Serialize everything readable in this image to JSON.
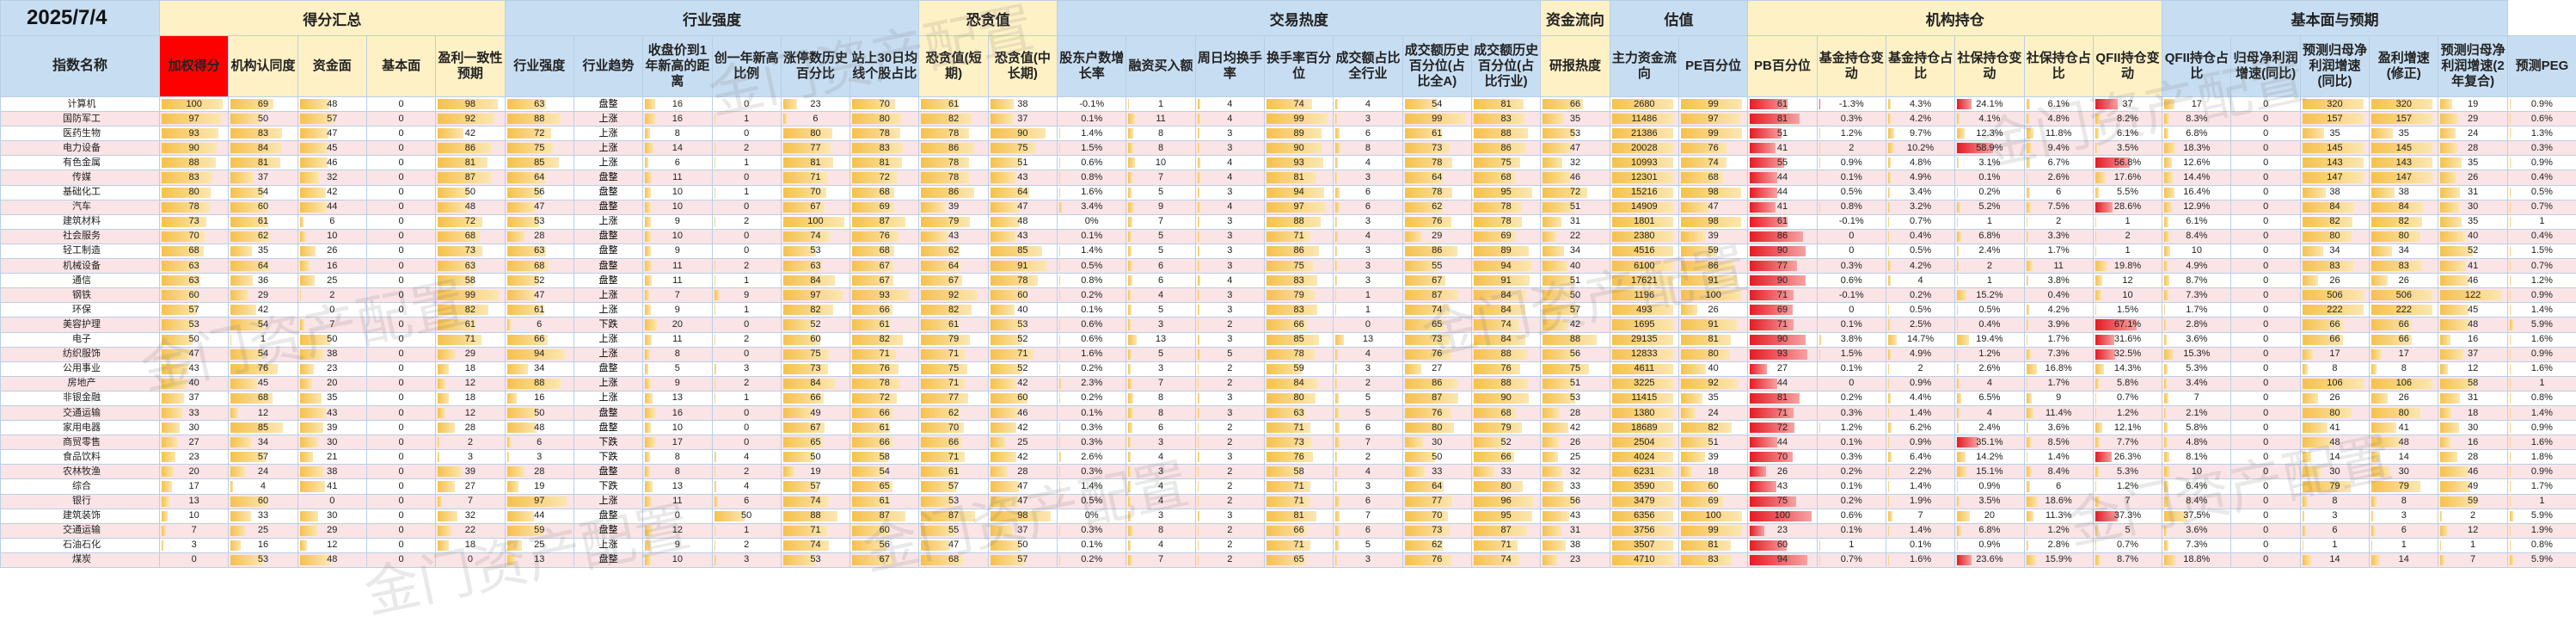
{
  "date": "2025/7/4",
  "name_header": "指数名称",
  "groups": [
    {
      "label": "得分汇总",
      "span": 5,
      "color": "yellow"
    },
    {
      "label": "行业强度",
      "span": 6,
      "color": "blue"
    },
    {
      "label": "恐贪值",
      "span": 2,
      "color": "yellow"
    },
    {
      "label": "交易热度",
      "span": 7,
      "color": "blue"
    },
    {
      "label": "资金流向",
      "span": 1,
      "color": "yellow"
    },
    {
      "label": "估值",
      "span": 2,
      "color": "blue"
    },
    {
      "label": "机构持仓",
      "span": 6,
      "color": "yellow"
    },
    {
      "label": "基本面与预期",
      "span": 5,
      "color": "blue"
    }
  ],
  "columns": [
    "加权得分",
    "机构认同度",
    "资金面",
    "基本面",
    "盈利一致性预期",
    "行业强度",
    "行业趋势",
    "收盘价到1年新高的距离",
    "创一年新高比例",
    "涨停数历史百分比",
    "站上30日均线个股占比",
    "恐贪值(短期)",
    "恐贪值(中长期)",
    "股东户数增长率",
    "融资买入额",
    "周日均换手率",
    "换手率百分位",
    "成交额占比全行业",
    "成交额历史百分位(占比全A)",
    "成交额历史百分位(占比行业)",
    "研报热度",
    "主力资金流向",
    "PE百分位",
    "PB百分位",
    "基金持仓变动",
    "基金持仓占比",
    "社保持仓变动",
    "社保持仓占比",
    "QFII持仓变动",
    "QFII持仓占比",
    "归母净利润增速(同比)",
    "预测归母净利润增速(同比)",
    "盈利增速(修正)",
    "预测归母净利润增速(2年复合)",
    "预测PEG"
  ],
  "watermark_text": "金门资产配置",
  "rows": [
    {
      "name": "计算机",
      "score": 100,
      "inst": 69,
      "fund": 48,
      "basic": 0,
      "cons": 98,
      "str": 63,
      "trend": "盘整"
    },
    {
      "name": "国防军工",
      "score": 97,
      "inst": 50,
      "fund": 57,
      "basic": 0,
      "cons": 92,
      "str": 88,
      "trend": "上涨"
    },
    {
      "name": "医药生物",
      "score": 93,
      "inst": 83,
      "fund": 47,
      "basic": 0,
      "cons": 42,
      "str": 72,
      "trend": "上涨"
    },
    {
      "name": "电力设备",
      "score": 90,
      "inst": 84,
      "fund": 45,
      "basic": 0,
      "cons": 86,
      "str": 75,
      "trend": "上涨"
    },
    {
      "name": "有色金属",
      "score": 88,
      "inst": 81,
      "fund": 46,
      "basic": 0,
      "cons": 81,
      "str": 85,
      "trend": "上涨"
    },
    {
      "name": "传媒",
      "score": 83,
      "inst": 37,
      "fund": 32,
      "basic": 0,
      "cons": 87,
      "str": 64,
      "trend": "盘整"
    },
    {
      "name": "基础化工",
      "score": 80,
      "inst": 54,
      "fund": 42,
      "basic": 0,
      "cons": 50,
      "str": 56,
      "trend": "盘整"
    },
    {
      "name": "汽车",
      "score": 78,
      "inst": 60,
      "fund": 44,
      "basic": 0,
      "cons": 48,
      "str": 47,
      "trend": "盘整"
    },
    {
      "name": "建筑材料",
      "score": 73,
      "inst": 61,
      "fund": 6,
      "basic": 0,
      "cons": 72,
      "str": 53,
      "trend": "上涨"
    },
    {
      "name": "社会服务",
      "score": 70,
      "inst": 62,
      "fund": 10,
      "basic": 0,
      "cons": 68,
      "str": 28,
      "trend": "盘整"
    },
    {
      "name": "轻工制造",
      "score": 68,
      "inst": 35,
      "fund": 26,
      "basic": 0,
      "cons": 73,
      "str": 63,
      "trend": "盘整"
    },
    {
      "name": "机械设备",
      "score": 63,
      "inst": 64,
      "fund": 16,
      "basic": 0,
      "cons": 63,
      "str": 68,
      "trend": "盘整"
    },
    {
      "name": "通信",
      "score": 63,
      "inst": 36,
      "fund": 25,
      "basic": 0,
      "cons": 58,
      "str": 52,
      "trend": "盘整"
    },
    {
      "name": "钢铁",
      "score": 60,
      "inst": 29,
      "fund": 2,
      "basic": 0,
      "cons": 99,
      "str": 47,
      "trend": "上涨"
    },
    {
      "name": "环保",
      "score": 57,
      "inst": 42,
      "fund": 0,
      "basic": 0,
      "cons": 82,
      "str": 61,
      "trend": "上涨"
    },
    {
      "name": "美容护理",
      "score": 53,
      "inst": 54,
      "fund": 7,
      "basic": 0,
      "cons": 61,
      "str": 6,
      "trend": "下跌"
    },
    {
      "name": "电子",
      "score": 50,
      "inst": 1,
      "fund": 50,
      "basic": 0,
      "cons": 71,
      "str": 66,
      "trend": "上涨"
    },
    {
      "name": "纺织服饰",
      "score": 47,
      "inst": 54,
      "fund": 38,
      "basic": 0,
      "cons": 29,
      "str": 94,
      "trend": "上涨"
    },
    {
      "name": "公用事业",
      "score": 43,
      "inst": 76,
      "fund": 23,
      "basic": 0,
      "cons": 18,
      "str": 34,
      "trend": "盘整"
    },
    {
      "name": "房地产",
      "score": 40,
      "inst": 45,
      "fund": 20,
      "basic": 0,
      "cons": 12,
      "str": 88,
      "trend": "上涨"
    },
    {
      "name": "非银金融",
      "score": 37,
      "inst": 68,
      "fund": 35,
      "basic": 0,
      "cons": 18,
      "str": 16,
      "trend": "上涨"
    },
    {
      "name": "交通运输",
      "score": 33,
      "inst": 12,
      "fund": 43,
      "basic": 0,
      "cons": 12,
      "str": 50,
      "trend": "盘整"
    },
    {
      "name": "家用电器",
      "score": 30,
      "inst": 85,
      "fund": 39,
      "basic": 0,
      "cons": 28,
      "str": 48,
      "trend": "盘整"
    },
    {
      "name": "商贸零售",
      "score": 27,
      "inst": 34,
      "fund": 30,
      "basic": 0,
      "cons": 2,
      "str": 6,
      "trend": "下跌"
    },
    {
      "name": "食品饮料",
      "score": 23,
      "inst": 57,
      "fund": 21,
      "basic": 0,
      "cons": 3,
      "str": 3,
      "trend": "下跌"
    },
    {
      "name": "农林牧渔",
      "score": 20,
      "inst": 24,
      "fund": 38,
      "basic": 0,
      "cons": 39,
      "str": 28,
      "trend": "盘整"
    },
    {
      "name": "综合",
      "score": 17,
      "inst": 4,
      "fund": 41,
      "basic": 0,
      "cons": 27,
      "str": 19,
      "trend": "下跌"
    },
    {
      "name": "银行",
      "score": 13,
      "inst": 60,
      "fund": 0,
      "basic": 0,
      "cons": 7,
      "str": 97,
      "trend": "上涨"
    },
    {
      "name": "建筑装饰",
      "score": 10,
      "inst": 33,
      "fund": 30,
      "basic": 0,
      "cons": 32,
      "str": 44,
      "trend": "盘整"
    },
    {
      "name": "交通运输",
      "score": 7,
      "inst": 25,
      "fund": 29,
      "basic": 0,
      "cons": 22,
      "str": 59,
      "trend": "盘整"
    },
    {
      "name": "石油石化",
      "score": 3,
      "inst": 16,
      "fund": 12,
      "basic": 0,
      "cons": 18,
      "str": 25,
      "trend": "上涨"
    },
    {
      "name": "煤炭",
      "score": 0,
      "inst": 53,
      "fund": 48,
      "basic": 0,
      "cons": 0,
      "str": 13,
      "trend": "盘整"
    }
  ],
  "extra": [
    [
      16,
      0,
      23,
      70,
      61,
      38,
      -0.1,
      1,
      4,
      74,
      4,
      54,
      81,
      66,
      2680,
      99,
      61,
      -1.3,
      4.3,
      24.1,
      6.1,
      37.0,
      17.0,
      0,
      320,
      320,
      19,
      0.9
    ],
    [
      16,
      1,
      6,
      80,
      82,
      37,
      0.1,
      11,
      4,
      99,
      3,
      99,
      83,
      35,
      11486,
      97,
      81,
      0.3,
      4.2,
      4.1,
      4.8,
      8.2,
      8.3,
      0,
      157,
      157,
      29,
      0.6
    ],
    [
      8,
      0,
      80,
      78,
      78,
      90,
      1.4,
      8,
      3,
      89,
      6,
      61,
      88,
      53,
      21386,
      99,
      51,
      1.2,
      9.7,
      12.3,
      11.8,
      6.1,
      6.8,
      0,
      35,
      35,
      24,
      1.3
    ],
    [
      14,
      2,
      77,
      83,
      86,
      75,
      1.5,
      8,
      3,
      90,
      8,
      73,
      86,
      47,
      20028,
      76,
      41,
      2.0,
      10.2,
      58.9,
      9.4,
      3.5,
      18.3,
      0,
      145,
      145,
      28,
      0.3
    ],
    [
      6,
      1,
      81,
      81,
      78,
      51,
      0.6,
      10,
      4,
      93,
      4,
      78,
      75,
      32,
      10993,
      74,
      55,
      0.9,
      4.8,
      3.1,
      6.7,
      56.8,
      12.6,
      0,
      143,
      143,
      35,
      0.9
    ],
    [
      11,
      0,
      71,
      72,
      78,
      43,
      0.8,
      7,
      4,
      81,
      3,
      64,
      68,
      46,
      12301,
      68,
      44,
      0.1,
      4.9,
      0.1,
      2.6,
      17.6,
      14.4,
      0,
      147,
      147,
      26,
      0.4
    ],
    [
      10,
      1,
      70,
      68,
      86,
      64,
      1.6,
      5,
      3,
      94,
      6,
      78,
      95,
      72,
      15216,
      98,
      44,
      0.5,
      3.4,
      0.2,
      6.0,
      5.5,
      16.4,
      0,
      38,
      38,
      31,
      0.5
    ],
    [
      10,
      0,
      67,
      69,
      39,
      47,
      3.4,
      9,
      4,
      97,
      6,
      62,
      78,
      51,
      14909,
      47,
      41,
      0.8,
      3.2,
      5.2,
      7.5,
      28.6,
      12.9,
      0,
      84,
      84,
      30,
      0.7
    ],
    [
      9,
      2,
      100,
      87,
      79,
      48,
      0.0,
      7,
      3,
      88,
      3,
      76,
      78,
      31,
      1801,
      98,
      61,
      -0.1,
      0.7,
      1.0,
      2.0,
      1.0,
      6.1,
      0,
      82,
      82,
      35,
      1.0
    ],
    [
      10,
      0,
      74,
      76,
      43,
      43,
      0.1,
      5,
      3,
      71,
      4,
      29,
      69,
      22,
      2380,
      39,
      86,
      0.0,
      0.4,
      6.8,
      3.3,
      2.0,
      8.4,
      0,
      80,
      80,
      40,
      0.4
    ],
    [
      9,
      0,
      53,
      68,
      62,
      85,
      1.4,
      5,
      3,
      86,
      3,
      86,
      89,
      34,
      4516,
      59,
      90,
      0.0,
      0.5,
      2.4,
      1.7,
      1.0,
      10.0,
      0,
      34,
      34,
      52,
      1.5
    ],
    [
      11,
      2,
      63,
      67,
      64,
      91,
      0.5,
      6,
      3,
      75,
      3,
      55,
      94,
      40,
      6100,
      86,
      77,
      0.3,
      4.2,
      2.0,
      11.0,
      19.8,
      4.9,
      0,
      83,
      83,
      41,
      0.7
    ],
    [
      11,
      1,
      84,
      67,
      67,
      78,
      0.8,
      6,
      4,
      83,
      3,
      67,
      91,
      51,
      17621,
      91,
      90,
      0.6,
      4.0,
      1.0,
      3.8,
      12.0,
      8.7,
      0,
      26,
      26,
      46,
      1.2
    ],
    [
      7,
      9,
      97,
      93,
      92,
      60,
      0.2,
      4,
      3,
      79,
      1,
      87,
      84,
      50,
      1196,
      100,
      71,
      -0.1,
      0.2,
      15.2,
      0.4,
      10.0,
      7.3,
      0,
      506,
      506,
      122,
      0.9
    ],
    [
      9,
      1,
      82,
      66,
      82,
      40,
      0.1,
      5,
      3,
      83,
      1,
      74,
      84,
      57,
      493,
      26,
      69,
      0.0,
      0.5,
      0.5,
      4.2,
      1.5,
      1.7,
      0,
      222,
      222,
      45,
      1.4
    ],
    [
      20,
      0,
      52,
      61,
      61,
      53,
      0.6,
      3,
      2,
      66,
      0,
      65,
      74,
      42,
      1695,
      91,
      71,
      0.1,
      2.5,
      0.4,
      3.9,
      67.1,
      2.8,
      0,
      66,
      66,
      48,
      5.9
    ],
    [
      11,
      2,
      60,
      82,
      79,
      52,
      0.6,
      13,
      3,
      85,
      13,
      73,
      84,
      88,
      29135,
      81,
      90,
      3.8,
      14.7,
      19.4,
      1.7,
      31.6,
      3.6,
      0,
      66,
      66,
      16,
      1.6
    ],
    [
      8,
      0,
      75,
      71,
      71,
      71,
      1.6,
      5,
      5,
      78,
      4,
      76,
      88,
      56,
      12833,
      80,
      93,
      1.5,
      4.9,
      1.2,
      7.3,
      32.5,
      15.3,
      0,
      17,
      17,
      37,
      0.9
    ],
    [
      5,
      3,
      73,
      76,
      75,
      52,
      0.2,
      3,
      2,
      59,
      3,
      27,
      76,
      75,
      4611,
      40,
      27,
      0.1,
      2.0,
      2.6,
      16.8,
      14.3,
      5.3,
      0,
      8,
      8,
      12,
      1.6
    ],
    [
      9,
      2,
      84,
      78,
      71,
      42,
      2.3,
      7,
      2,
      84,
      2,
      86,
      88,
      51,
      3225,
      92,
      44,
      0.0,
      0.9,
      4.0,
      1.7,
      5.8,
      3.4,
      0,
      106,
      106,
      58,
      1.0
    ],
    [
      13,
      1,
      66,
      72,
      77,
      60,
      0.2,
      8,
      3,
      80,
      5,
      87,
      90,
      53,
      11415,
      35,
      81,
      0.2,
      4.4,
      6.5,
      9.0,
      0.7,
      7.0,
      0,
      26,
      26,
      31,
      0.8
    ],
    [
      16,
      0,
      49,
      66,
      62,
      46,
      0.1,
      8,
      3,
      63,
      5,
      76,
      68,
      28,
      1380,
      24,
      71,
      0.3,
      1.4,
      4.0,
      11.4,
      1.2,
      2.1,
      0,
      80,
      80,
      18,
      1.4
    ],
    [
      10,
      0,
      67,
      61,
      70,
      42,
      0.3,
      6,
      2,
      71,
      6,
      80,
      79,
      42,
      18689,
      82,
      72,
      1.2,
      6.2,
      2.4,
      3.6,
      12.1,
      5.8,
      0,
      41,
      41,
      30,
      0.9
    ],
    [
      17,
      0,
      65,
      66,
      66,
      25,
      0.3,
      3,
      2,
      73,
      7,
      30,
      52,
      26,
      2504,
      51,
      44,
      0.1,
      0.9,
      35.1,
      8.5,
      7.7,
      4.8,
      0,
      48,
      48,
      16,
      1.6
    ],
    [
      8,
      4,
      50,
      58,
      71,
      42,
      2.6,
      4,
      3,
      76,
      2,
      50,
      66,
      25,
      4024,
      39,
      70,
      0.3,
      6.4,
      14.2,
      1.4,
      26.3,
      8.1,
      0,
      14,
      14,
      28,
      1.8
    ],
    [
      8,
      2,
      19,
      54,
      61,
      28,
      0.3,
      3,
      2,
      58,
      4,
      33,
      33,
      32,
      6231,
      18,
      26,
      0.2,
      2.2,
      15.1,
      8.4,
      5.3,
      10.0,
      0,
      30,
      30,
      46,
      0.9
    ],
    [
      13,
      4,
      57,
      65,
      57,
      47,
      1.4,
      4,
      2,
      71,
      3,
      64,
      80,
      33,
      3590,
      60,
      43,
      0.1,
      1.4,
      0.9,
      6.0,
      1.2,
      6.4,
      0,
      79,
      79,
      49,
      1.7
    ],
    [
      11,
      6,
      74,
      61,
      53,
      47,
      0.5,
      4,
      2,
      71,
      6,
      77,
      96,
      56,
      3479,
      69,
      75,
      0.2,
      1.9,
      3.5,
      18.6,
      7.0,
      8.4,
      0,
      8,
      8,
      59,
      1.0
    ],
    [
      0,
      50,
      88,
      87,
      87,
      98,
      0.0,
      3,
      3,
      81,
      7,
      70,
      95,
      43,
      6356,
      100,
      100,
      0.6,
      7.0,
      20.0,
      11.3,
      37.3,
      37.5,
      0,
      3,
      3,
      2,
      5.9
    ],
    [
      12,
      1,
      71,
      60,
      55,
      37,
      0.3,
      8,
      2,
      66,
      6,
      73,
      87,
      31,
      3756,
      99,
      23,
      0.1,
      1.4,
      6.8,
      1.2,
      5.0,
      3.6,
      0,
      6,
      6,
      12,
      1.9
    ],
    [
      9,
      2,
      74,
      56,
      47,
      50,
      0.1,
      4,
      2,
      71,
      5,
      62,
      71,
      38,
      3507,
      81,
      60,
      1.0,
      0.1,
      0.9,
      2.8,
      0.7,
      7.3,
      0,
      1,
      1,
      1,
      0.8
    ],
    [
      10,
      3,
      53,
      67,
      68,
      57,
      0.2,
      7,
      2,
      65,
      3,
      76,
      74,
      23,
      4710,
      83,
      94,
      0.7,
      1.6,
      23.6,
      15.9,
      8.7,
      18.8,
      0,
      14,
      14,
      7,
      5.9
    ]
  ]
}
